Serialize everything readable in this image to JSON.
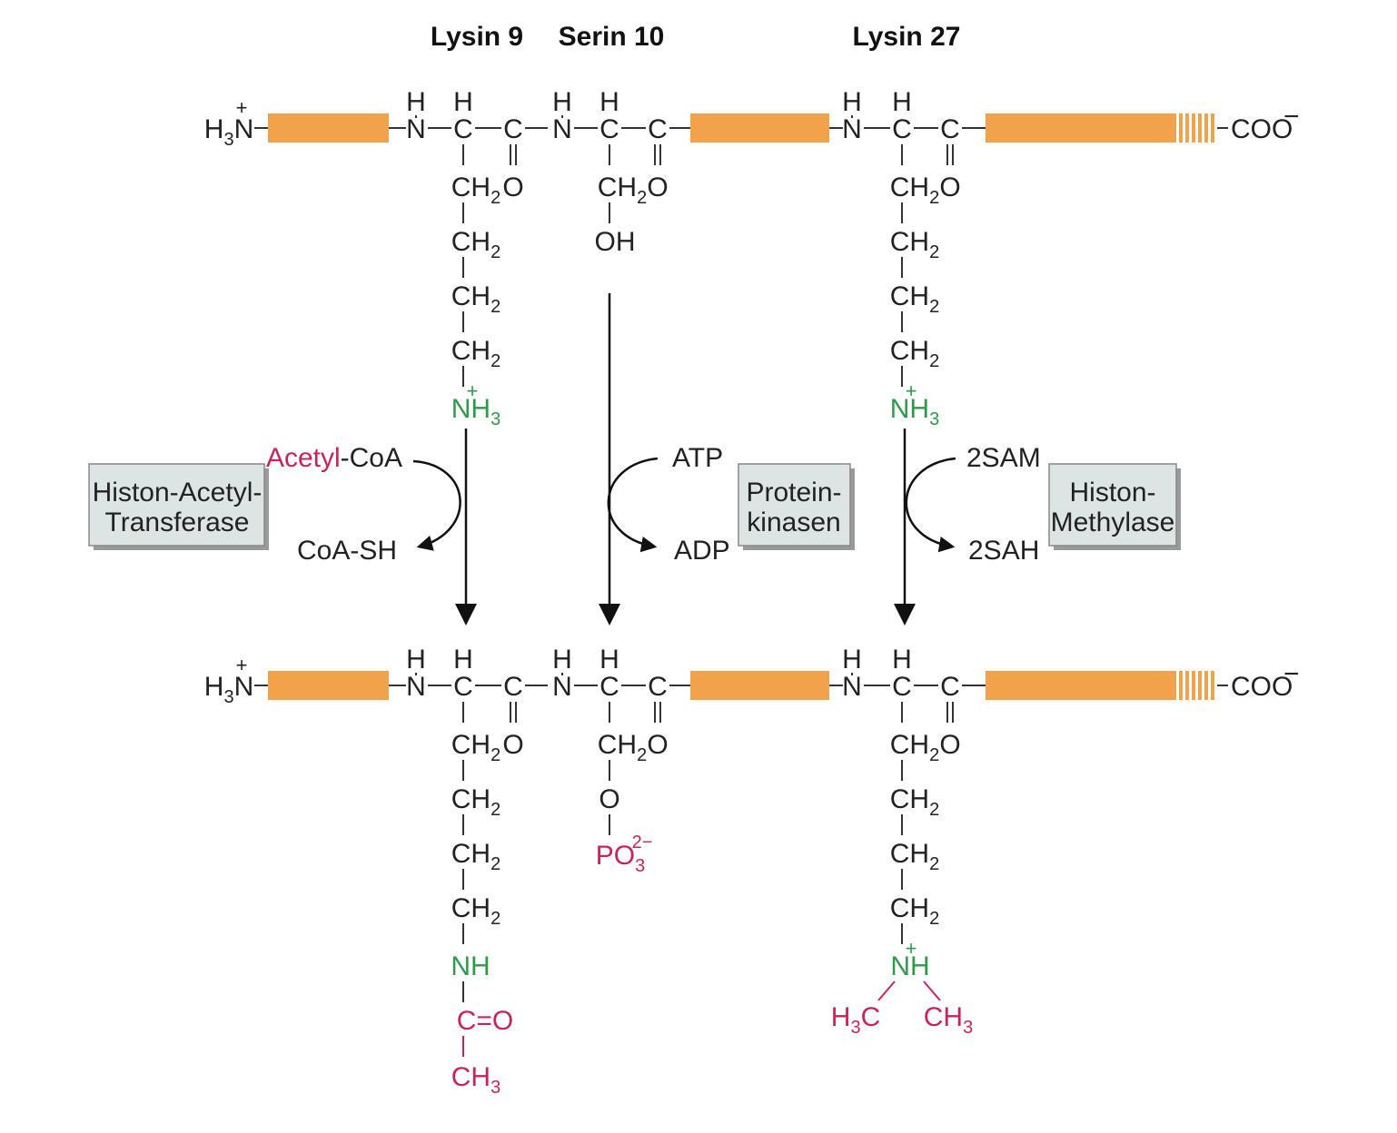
{
  "residues": {
    "lys9": "Lysin 9",
    "ser10": "Serin 10",
    "lys27": "Lysin 27"
  },
  "chem": {
    "H": "H",
    "N": "N",
    "C": "C",
    "O": "O",
    "CH": "CH",
    "two": "2",
    "three": "3",
    "plus": "+",
    "OH": "OH",
    "NH": "NH",
    "PO": "PO",
    "charge": "2−",
    "COO": "COO",
    "minus": "−",
    "C_eq_O": "C=O"
  },
  "reactions": {
    "acetyl": {
      "colored": "Acetyl",
      "rest": "-CoA"
    },
    "coash": "CoA-SH",
    "atp": "ATP",
    "adp": "ADP",
    "sam": "2SAM",
    "sah": "2SAH"
  },
  "enzymes": {
    "hat": {
      "line1": "Histon-Acetyl-",
      "line2": "Transferase"
    },
    "kinase": {
      "line1": "Protein-",
      "line2": "kinasen"
    },
    "methylase": {
      "line1": "Histon-",
      "line2": "Methylase"
    }
  },
  "colors": {
    "chain": "#f2a24a",
    "green": "#2e9a4a",
    "magenta": "#c8245a",
    "enzyme_box": "#dde4e4"
  }
}
